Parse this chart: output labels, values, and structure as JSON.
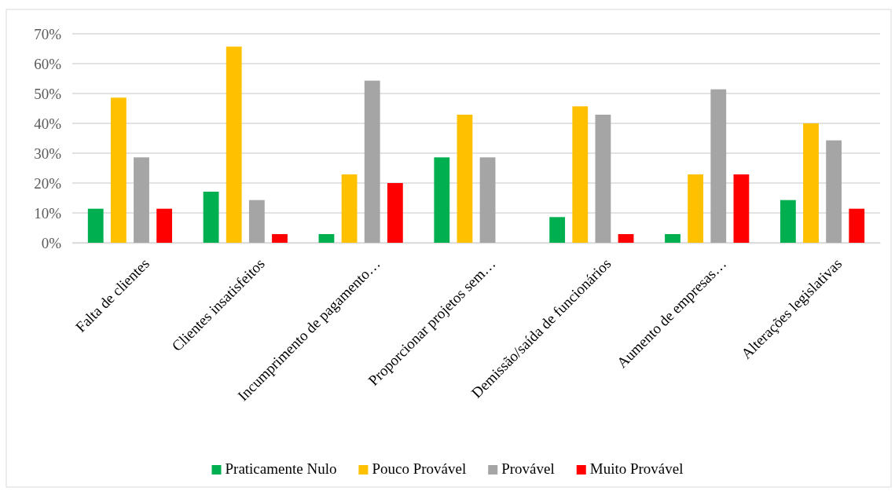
{
  "chart_data": {
    "type": "bar",
    "categories": [
      "Falta de clientes",
      "Clientes insatisfeitos",
      "Incumprimento de pagamento…",
      "Proporcionar projetos sem…",
      "Demissão/saída de funcionários",
      "Aumento de empresas…",
      "Alterações legislativas"
    ],
    "series": [
      {
        "name": "Praticamente Nulo",
        "color": "#00b050",
        "values": [
          11.4,
          17.1,
          2.9,
          28.6,
          8.6,
          2.9,
          14.3
        ]
      },
      {
        "name": "Pouco Provável",
        "color": "#ffc000",
        "values": [
          48.6,
          65.7,
          22.9,
          42.9,
          45.7,
          22.9,
          40
        ]
      },
      {
        "name": "Provável",
        "color": "#a5a5a5",
        "values": [
          28.6,
          14.3,
          54.3,
          28.6,
          42.9,
          51.4,
          34.3
        ]
      },
      {
        "name": "Muito Provável",
        "color": "#ff0000",
        "values": [
          11.4,
          2.9,
          20,
          0,
          2.9,
          22.9,
          11.4
        ]
      }
    ],
    "ylim": [
      0,
      70
    ],
    "yticks": [
      {
        "value": 0,
        "label": "0%"
      },
      {
        "value": 10,
        "label": "10%"
      },
      {
        "value": 20,
        "label": "20%"
      },
      {
        "value": 30,
        "label": "30%"
      },
      {
        "value": 40,
        "label": "40%"
      },
      {
        "value": 50,
        "label": "50%"
      },
      {
        "value": 60,
        "label": "60%"
      },
      {
        "value": 70,
        "label": "70%"
      }
    ],
    "grid": "y",
    "legend": "bottom"
  }
}
